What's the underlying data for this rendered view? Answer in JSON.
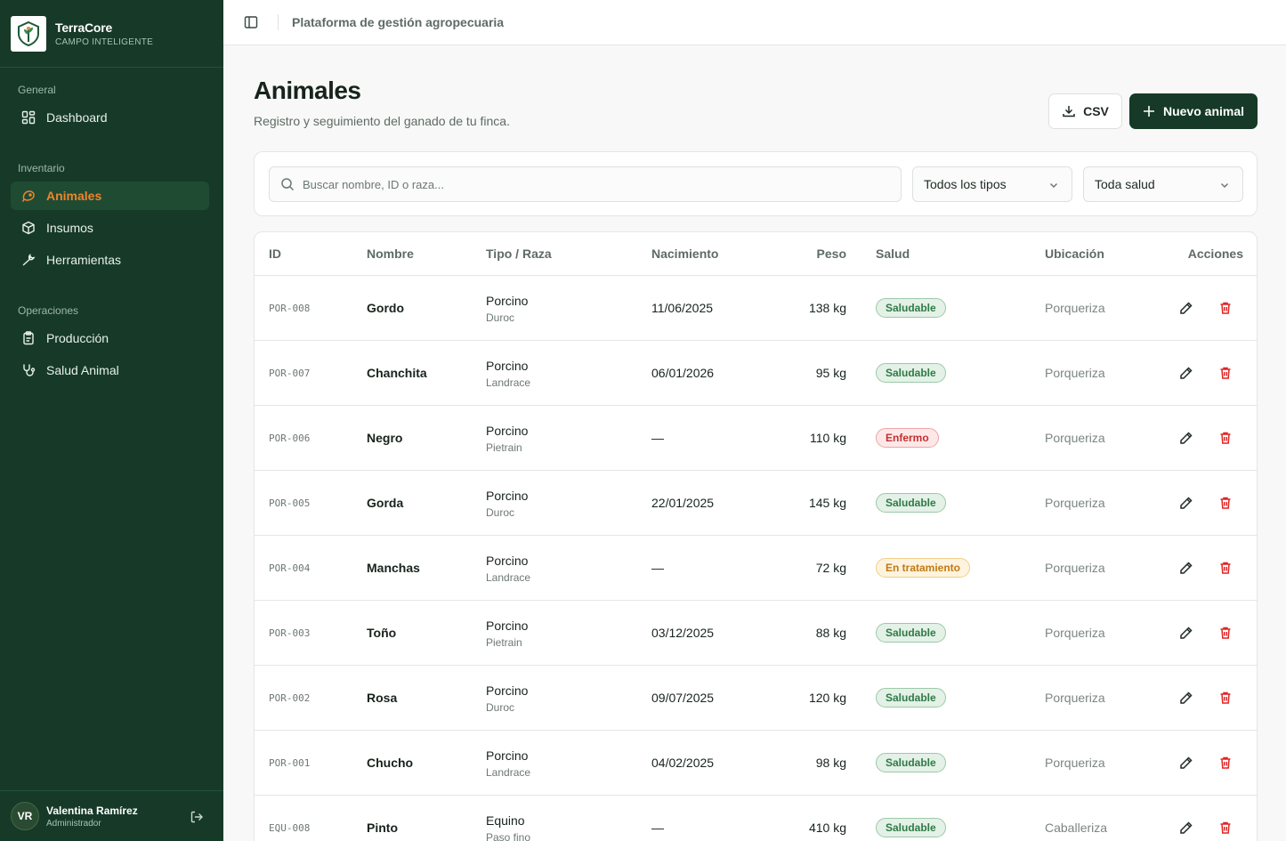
{
  "brand": {
    "name": "TerraCore",
    "tagline": "CAMPO INTELIGENTE"
  },
  "nav": {
    "sections": [
      {
        "label": "General",
        "items": [
          {
            "label": "Dashboard",
            "icon": "dashboard-icon"
          }
        ]
      },
      {
        "label": "Inventario",
        "items": [
          {
            "label": "Animales",
            "icon": "animal-icon",
            "active": true
          },
          {
            "label": "Insumos",
            "icon": "box-icon"
          },
          {
            "label": "Herramientas",
            "icon": "wrench-icon"
          }
        ]
      },
      {
        "label": "Operaciones",
        "items": [
          {
            "label": "Producción",
            "icon": "clipboard-icon"
          },
          {
            "label": "Salud Animal",
            "icon": "stethoscope-icon"
          }
        ]
      }
    ]
  },
  "user": {
    "initials": "VR",
    "name": "Valentina Ramírez",
    "role": "Administrador"
  },
  "topbar": {
    "title": "Plataforma de gestión agropecuaria"
  },
  "page": {
    "title": "Animales",
    "subtitle": "Registro y seguimiento del ganado de tu finca.",
    "csv_label": "CSV",
    "new_label": "Nuevo animal"
  },
  "filters": {
    "search_placeholder": "Buscar nombre, ID o raza...",
    "type_value": "Todos los tipos",
    "health_value": "Toda salud"
  },
  "table": {
    "headers": {
      "id": "ID",
      "name": "Nombre",
      "type": "Tipo / Raza",
      "birth": "Nacimiento",
      "weight": "Peso",
      "health": "Salud",
      "location": "Ubicación",
      "actions": "Acciones"
    },
    "rows": [
      {
        "id": "POR-008",
        "name": "Gordo",
        "type": "Porcino",
        "breed": "Duroc",
        "birth": "11/06/2025",
        "weight": "138 kg",
        "health": "Saludable",
        "status": "ok",
        "location": "Porqueriza"
      },
      {
        "id": "POR-007",
        "name": "Chanchita",
        "type": "Porcino",
        "breed": "Landrace",
        "birth": "06/01/2026",
        "weight": "95 kg",
        "health": "Saludable",
        "status": "ok",
        "location": "Porqueriza"
      },
      {
        "id": "POR-006",
        "name": "Negro",
        "type": "Porcino",
        "breed": "Pietrain",
        "birth": "—",
        "weight": "110 kg",
        "health": "Enfermo",
        "status": "sick",
        "location": "Porqueriza"
      },
      {
        "id": "POR-005",
        "name": "Gorda",
        "type": "Porcino",
        "breed": "Duroc",
        "birth": "22/01/2025",
        "weight": "145 kg",
        "health": "Saludable",
        "status": "ok",
        "location": "Porqueriza"
      },
      {
        "id": "POR-004",
        "name": "Manchas",
        "type": "Porcino",
        "breed": "Landrace",
        "birth": "—",
        "weight": "72 kg",
        "health": "En tratamiento",
        "status": "treat",
        "location": "Porqueriza"
      },
      {
        "id": "POR-003",
        "name": "Toño",
        "type": "Porcino",
        "breed": "Pietrain",
        "birth": "03/12/2025",
        "weight": "88 kg",
        "health": "Saludable",
        "status": "ok",
        "location": "Porqueriza"
      },
      {
        "id": "POR-002",
        "name": "Rosa",
        "type": "Porcino",
        "breed": "Duroc",
        "birth": "09/07/2025",
        "weight": "120 kg",
        "health": "Saludable",
        "status": "ok",
        "location": "Porqueriza"
      },
      {
        "id": "POR-001",
        "name": "Chucho",
        "type": "Porcino",
        "breed": "Landrace",
        "birth": "04/02/2025",
        "weight": "98 kg",
        "health": "Saludable",
        "status": "ok",
        "location": "Porqueriza"
      },
      {
        "id": "EQU-008",
        "name": "Pinto",
        "type": "Equino",
        "breed": "Paso fino",
        "birth": "—",
        "weight": "410 kg",
        "health": "Saludable",
        "status": "ok",
        "location": "Caballeriza"
      }
    ]
  },
  "colors": {
    "sidebar": "#163a27",
    "accent": "#f0842b",
    "danger": "#e02424"
  }
}
